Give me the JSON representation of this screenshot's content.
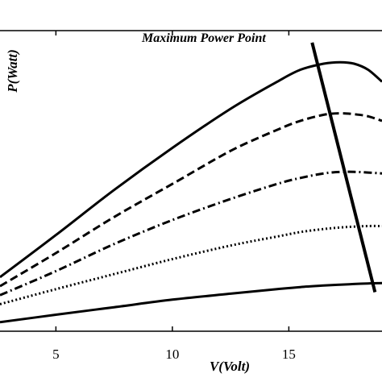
{
  "chart_data": {
    "type": "line",
    "title": "",
    "xlabel": "V(Volt)",
    "ylabel": "P(Watt)",
    "xlim": [
      2.6,
      19
    ],
    "ylim": [
      0,
      100
    ],
    "x_ticks": [
      5,
      10,
      15
    ],
    "grid": false,
    "legend": "none",
    "annotations": [
      {
        "text": "Maximum Power Point"
      }
    ],
    "series": [
      {
        "style": "solid",
        "x": [
          2.6,
          5,
          7.5,
          10,
          12.5,
          14.5,
          15.5,
          16.5,
          17.2,
          17.8,
          18.4,
          19
        ],
        "y": [
          18,
          32,
          47,
          61,
          74,
          83,
          87,
          89,
          89.5,
          89,
          87,
          83
        ]
      },
      {
        "style": "dashed",
        "x": [
          2.6,
          5,
          7.5,
          10,
          12.5,
          14.5,
          15.5,
          16.5,
          17.2,
          17.8,
          18.4,
          19
        ],
        "y": [
          15,
          26,
          38,
          49,
          60,
          67,
          70,
          72,
          72.5,
          72.2,
          71.5,
          70
        ]
      },
      {
        "style": "dashdot",
        "x": [
          2.6,
          5,
          7.5,
          10,
          12.5,
          14.5,
          15.5,
          16.5,
          17.2,
          17.8,
          18.4,
          19
        ],
        "y": [
          12,
          20,
          29,
          37,
          44,
          49,
          51,
          52.5,
          53,
          53,
          52.8,
          52.5
        ]
      },
      {
        "style": "dotted",
        "x": [
          2.6,
          5,
          7.5,
          10,
          12.5,
          14.5,
          15.5,
          16.5,
          17.2,
          17.8,
          18.4,
          19
        ],
        "y": [
          9,
          14,
          19,
          24,
          28.5,
          31.5,
          33,
          34,
          34.5,
          34.8,
          35,
          35
        ]
      },
      {
        "style": "solid",
        "x": [
          2.6,
          5,
          7.5,
          10,
          12.5,
          14.5,
          15.5,
          16.5,
          17.2,
          17.8,
          18.4,
          19
        ],
        "y": [
          3,
          5.5,
          8,
          10.5,
          12.5,
          14,
          14.7,
          15.2,
          15.5,
          15.7,
          15.9,
          16
        ]
      }
    ],
    "mpp_line": {
      "x": [
        16.0,
        18.7
      ],
      "y": [
        96,
        13
      ]
    }
  }
}
